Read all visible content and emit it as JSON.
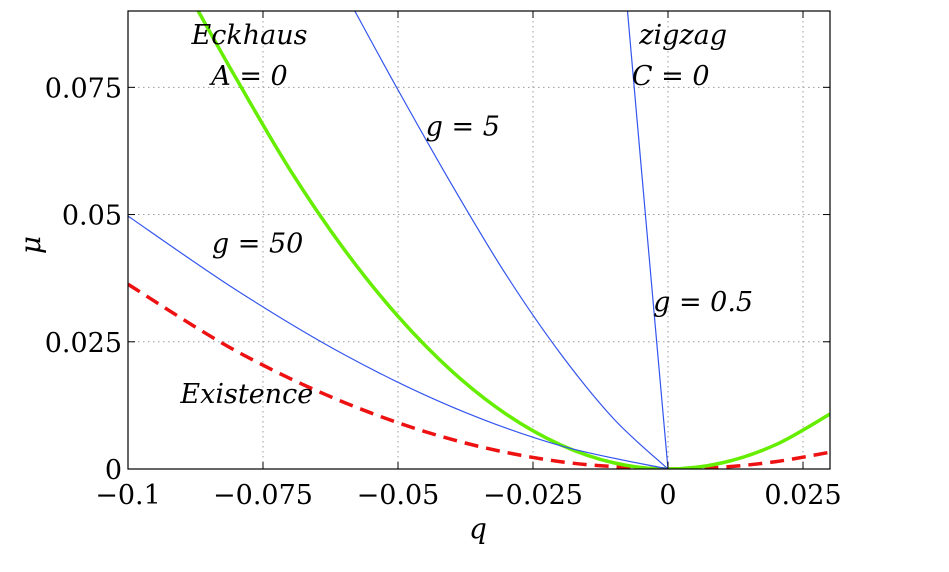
{
  "chart_data": {
    "type": "line",
    "xlabel": "q",
    "ylabel": "μ",
    "xlim": [
      -0.1,
      0.03
    ],
    "ylim": [
      0,
      0.09
    ],
    "x_ticks": [
      -0.1,
      -0.075,
      -0.05,
      -0.025,
      0,
      0.025
    ],
    "x_tick_labels": [
      "−0.1",
      "−0.075",
      "−0.05",
      "−0.025",
      "0",
      "0.025"
    ],
    "y_ticks": [
      0,
      0.025,
      0.05,
      0.075
    ],
    "y_tick_labels": [
      "0",
      "0.025",
      "0.05",
      "0.075"
    ],
    "grid": true,
    "series": [
      {
        "name": "Existence",
        "style": "dashed",
        "color": "#ee1111",
        "x": [
          -0.1,
          -0.08,
          -0.06,
          -0.04,
          -0.02,
          0,
          0.01,
          0.02,
          0.03
        ],
        "y": [
          0.0363,
          0.0232,
          0.0131,
          0.0058,
          0.00145,
          0,
          0.00036,
          0.00145,
          0.0033
        ]
      },
      {
        "name": "Eckhaus A = 0",
        "style": "solid",
        "color": "#66ee00",
        "x": [
          -0.087,
          -0.08,
          -0.07,
          -0.06,
          -0.05,
          -0.04,
          -0.03,
          -0.02,
          -0.01,
          0,
          0.01,
          0.02,
          0.03
        ],
        "y": [
          0.09,
          0.0768,
          0.0588,
          0.0432,
          0.03,
          0.0192,
          0.0108,
          0.0048,
          0.0012,
          0,
          0.0012,
          0.0048,
          0.0108
        ]
      },
      {
        "name": "g = 50",
        "style": "solid",
        "color": "#3355ee",
        "x": [
          -0.1,
          -0.08,
          -0.06,
          -0.04,
          -0.02,
          0
        ],
        "y": [
          0.0497,
          0.0352,
          0.0225,
          0.0122,
          0.0046,
          0
        ]
      },
      {
        "name": "g = 5",
        "style": "solid",
        "color": "#3355ee",
        "x": [
          -0.058,
          -0.05,
          -0.04,
          -0.03,
          -0.02,
          -0.01,
          0
        ],
        "y": [
          0.09,
          0.0745,
          0.0558,
          0.0382,
          0.0228,
          0.0098,
          0
        ]
      },
      {
        "name": "g = 0.5",
        "style": "solid",
        "color": "#3355ee",
        "x": [
          -0.0075,
          -0.005,
          -0.0025,
          0
        ],
        "y": [
          0.09,
          0.0598,
          0.0298,
          0
        ]
      }
    ],
    "annotations": [
      {
        "text": "Eckhaus",
        "x": -0.0775,
        "y": 0.0835
      },
      {
        "text": "A = 0",
        "x": -0.0775,
        "y": 0.0755
      },
      {
        "text": "g = 5",
        "x": -0.038,
        "y": 0.0655
      },
      {
        "text": "zigzag",
        "x": 0.0028,
        "y": 0.0835
      },
      {
        "text": "C = 0",
        "x": 0.0005,
        "y": 0.0755
      },
      {
        "text": "g = 50",
        "x": -0.076,
        "y": 0.0425
      },
      {
        "text": "g = 0.5",
        "x": 0.0065,
        "y": 0.031
      },
      {
        "text": "Existence",
        "x": -0.078,
        "y": 0.013
      }
    ]
  }
}
